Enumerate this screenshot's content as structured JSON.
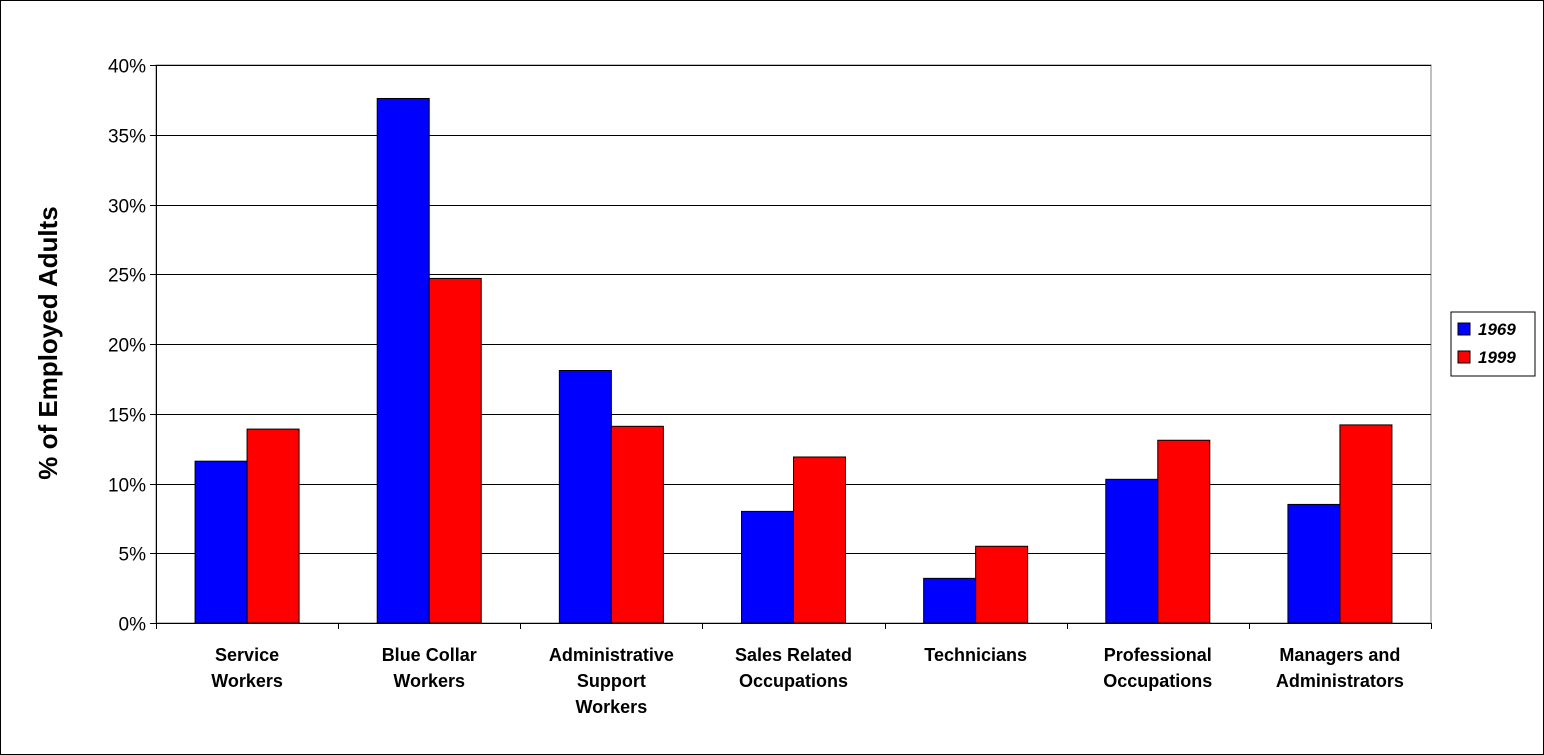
{
  "chart_data": {
    "type": "bar",
    "title": "",
    "xlabel": "",
    "ylabel": "% of Employed Adults",
    "ylim": [
      0,
      40
    ],
    "ytick_step": 5,
    "y_format": "percent",
    "grid": true,
    "legend_position": "right",
    "categories": [
      [
        "Service",
        "Workers"
      ],
      [
        "Blue Collar",
        "Workers"
      ],
      [
        "Administrative",
        "Support",
        "Workers"
      ],
      [
        "Sales Related",
        "Occupations"
      ],
      [
        "Technicians"
      ],
      [
        "Professional",
        "Occupations"
      ],
      [
        "Managers and",
        "Administrators"
      ]
    ],
    "series": [
      {
        "name": "1969",
        "color": "#0000FF",
        "values": [
          11.6,
          37.6,
          18.1,
          8.0,
          3.2,
          10.3,
          8.5
        ]
      },
      {
        "name": "1999",
        "color": "#FF0000",
        "values": [
          13.9,
          24.7,
          14.1,
          11.9,
          5.5,
          13.1,
          14.2
        ]
      }
    ]
  }
}
